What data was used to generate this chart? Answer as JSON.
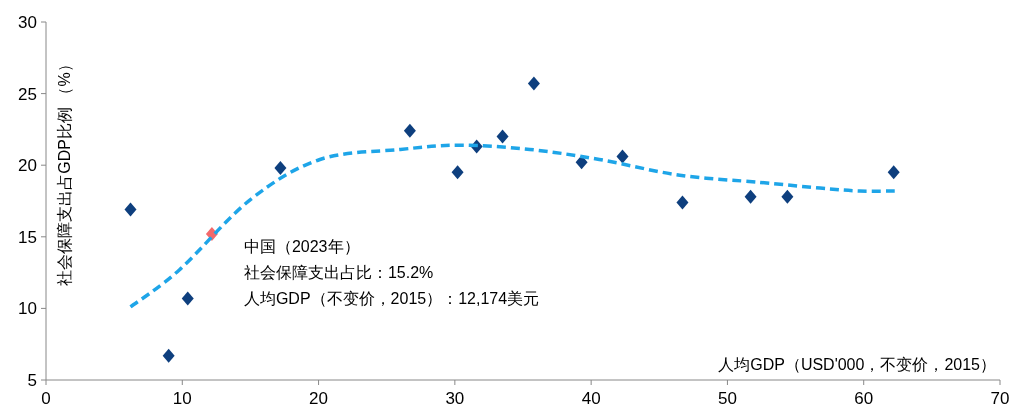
{
  "chart_data": {
    "type": "scatter",
    "xlabel": "人均GDP（USD'000，不变价，2015）",
    "ylabel": "社会保障支出占GDP比例 （%）",
    "xlim": [
      0,
      70
    ],
    "xticks": [
      0,
      10,
      20,
      30,
      40,
      50,
      60,
      70
    ],
    "ylim": [
      5,
      30
    ],
    "yticks": [
      5,
      10,
      15,
      20,
      25,
      30
    ],
    "grid": false,
    "marker": "diamond",
    "annotations": [
      {
        "text": "中国（2023年）",
        "x": 12.174,
        "y": 15.2
      },
      "社会保障支出占比：15.2%",
      "人均GDP（不变价，2015）：12,174美元"
    ],
    "series": [
      {
        "x": [
          6.2,
          9.0,
          10.4,
          12.174,
          17.2,
          26.7,
          30.2,
          31.6,
          33.5,
          35.8,
          39.3,
          42.3,
          46.7,
          51.7,
          54.4,
          62.2
        ],
        "values": [
          16.9,
          6.7,
          10.7,
          15.2,
          19.8,
          22.4,
          19.5,
          21.3,
          22.0,
          25.7,
          20.2,
          20.6,
          17.4,
          17.8,
          17.8,
          19.5
        ],
        "colors": [
          "#0e3f7e",
          "#0e3f7e",
          "#0e3f7e",
          "#f4696b",
          "#0e3f7e",
          "#0e3f7e",
          "#0e3f7e",
          "#0e3f7e",
          "#0e3f7e",
          "#0e3f7e",
          "#0e3f7e",
          "#0e3f7e",
          "#0e3f7e",
          "#0e3f7e",
          "#0e3f7e",
          "#0e3f7e"
        ]
      },
      {
        "type": "line",
        "color": "#1ea5e8",
        "line_style": "dashed",
        "marker": "none",
        "x": [
          6.2,
          9.8,
          15,
          20.1,
          26,
          30.4,
          35.5,
          40.6,
          46.5,
          52.4,
          56.8,
          59.7,
          62.5
        ],
        "values": [
          10.1,
          12.7,
          17.6,
          20.4,
          21.1,
          21.4,
          21.1,
          20.4,
          19.3,
          18.8,
          18.4,
          18.2,
          18.2
        ]
      }
    ]
  }
}
